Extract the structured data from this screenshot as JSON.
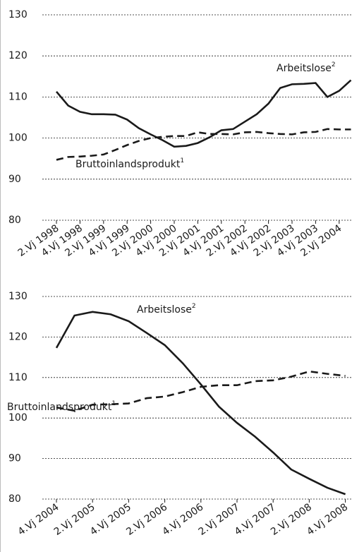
{
  "chart_data": [
    {
      "type": "line",
      "categories": [
        "2.Vj 1998",
        null,
        "4.Vj 1998",
        null,
        "2.Vj 1999",
        null,
        "4.Vj 1999",
        null,
        "2.Vj 2000",
        null,
        "4.Vj 2000",
        null,
        "2.Vj 2001",
        null,
        "4.Vj 2001",
        null,
        "2.Vj 2002",
        null,
        "4.Vj 2002",
        null,
        "2.Vj 2003",
        null,
        "4.Vj 2003",
        null,
        "2.Vj 2004",
        null
      ],
      "series": [
        {
          "name": "Arbeitslose",
          "name_sup": "2",
          "color": "#1a1a1a",
          "dash": false,
          "values": [
            111.3,
            107.9,
            106.4,
            105.8,
            105.8,
            105.7,
            104.5,
            102.4,
            100.9,
            99.5,
            97.9,
            98.1,
            98.8,
            100.2,
            101.9,
            102.2,
            104.0,
            105.8,
            108.4,
            112.2,
            113.1,
            113.2,
            113.4,
            110.0,
            111.5,
            114.1
          ]
        },
        {
          "name": "Bruttoinlandsprodukt",
          "name_sup": "1",
          "color": "#1a1a1a",
          "dash": true,
          "values": [
            94.7,
            95.4,
            95.5,
            95.7,
            96.0,
            97.1,
            98.3,
            99.3,
            100.0,
            100.3,
            100.5,
            100.5,
            101.4,
            101.0,
            101.0,
            100.9,
            101.4,
            101.5,
            101.2,
            101.0,
            100.9,
            101.4,
            101.5,
            102.2,
            102.1,
            102.1
          ]
        }
      ],
      "ylim": [
        80,
        130
      ],
      "yticks": [
        80,
        90,
        100,
        110,
        120,
        130
      ],
      "grid": true
    },
    {
      "type": "line",
      "categories": [
        "4.Vj 2004",
        null,
        "2.Vj 2005",
        null,
        "4.Vj 2005",
        null,
        "2.Vj 2006",
        null,
        "4.Vj 2006",
        null,
        "2.Vj 2007",
        null,
        "4.Vj 2007",
        null,
        "2.Vj 2008",
        null,
        "4.Vj 2008"
      ],
      "series": [
        {
          "name": "Arbeitslose",
          "name_sup": "2",
          "color": "#1a1a1a",
          "dash": false,
          "values": [
            117.3,
            125.3,
            126.2,
            125.6,
            123.9,
            121.0,
            118.0,
            113.5,
            108.3,
            102.8,
            98.8,
            95.4,
            91.5,
            87.3,
            85.0,
            82.8,
            81.2
          ]
        },
        {
          "name": "Bruttoinlandsprodukt",
          "name_sup": "1",
          "color": "#1a1a1a",
          "dash": true,
          "values": [
            102.6,
            101.8,
            103.3,
            103.4,
            103.6,
            104.9,
            105.3,
            106.4,
            107.7,
            108.1,
            108.1,
            109.1,
            109.3,
            110.2,
            111.5,
            110.9,
            110.4
          ]
        }
      ],
      "ylim": [
        80,
        130
      ],
      "yticks": [
        80,
        90,
        100,
        110,
        120,
        130
      ],
      "grid": true
    }
  ]
}
